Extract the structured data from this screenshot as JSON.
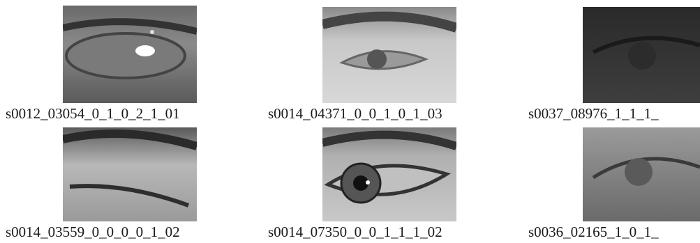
{
  "figure": {
    "images": [
      {
        "caption": "s0012_03054_0_1_0_2_1_01"
      },
      {
        "caption": "s0014_04371_0_0_1_0_1_03"
      },
      {
        "caption": "s0037_08976_1_1_1_"
      },
      {
        "caption": "s0014_03559_0_0_0_0_1_02"
      },
      {
        "caption": "s0014_07350_0_0_1_1_1_02"
      },
      {
        "caption": "s0036_02165_1_0_1_"
      }
    ]
  }
}
